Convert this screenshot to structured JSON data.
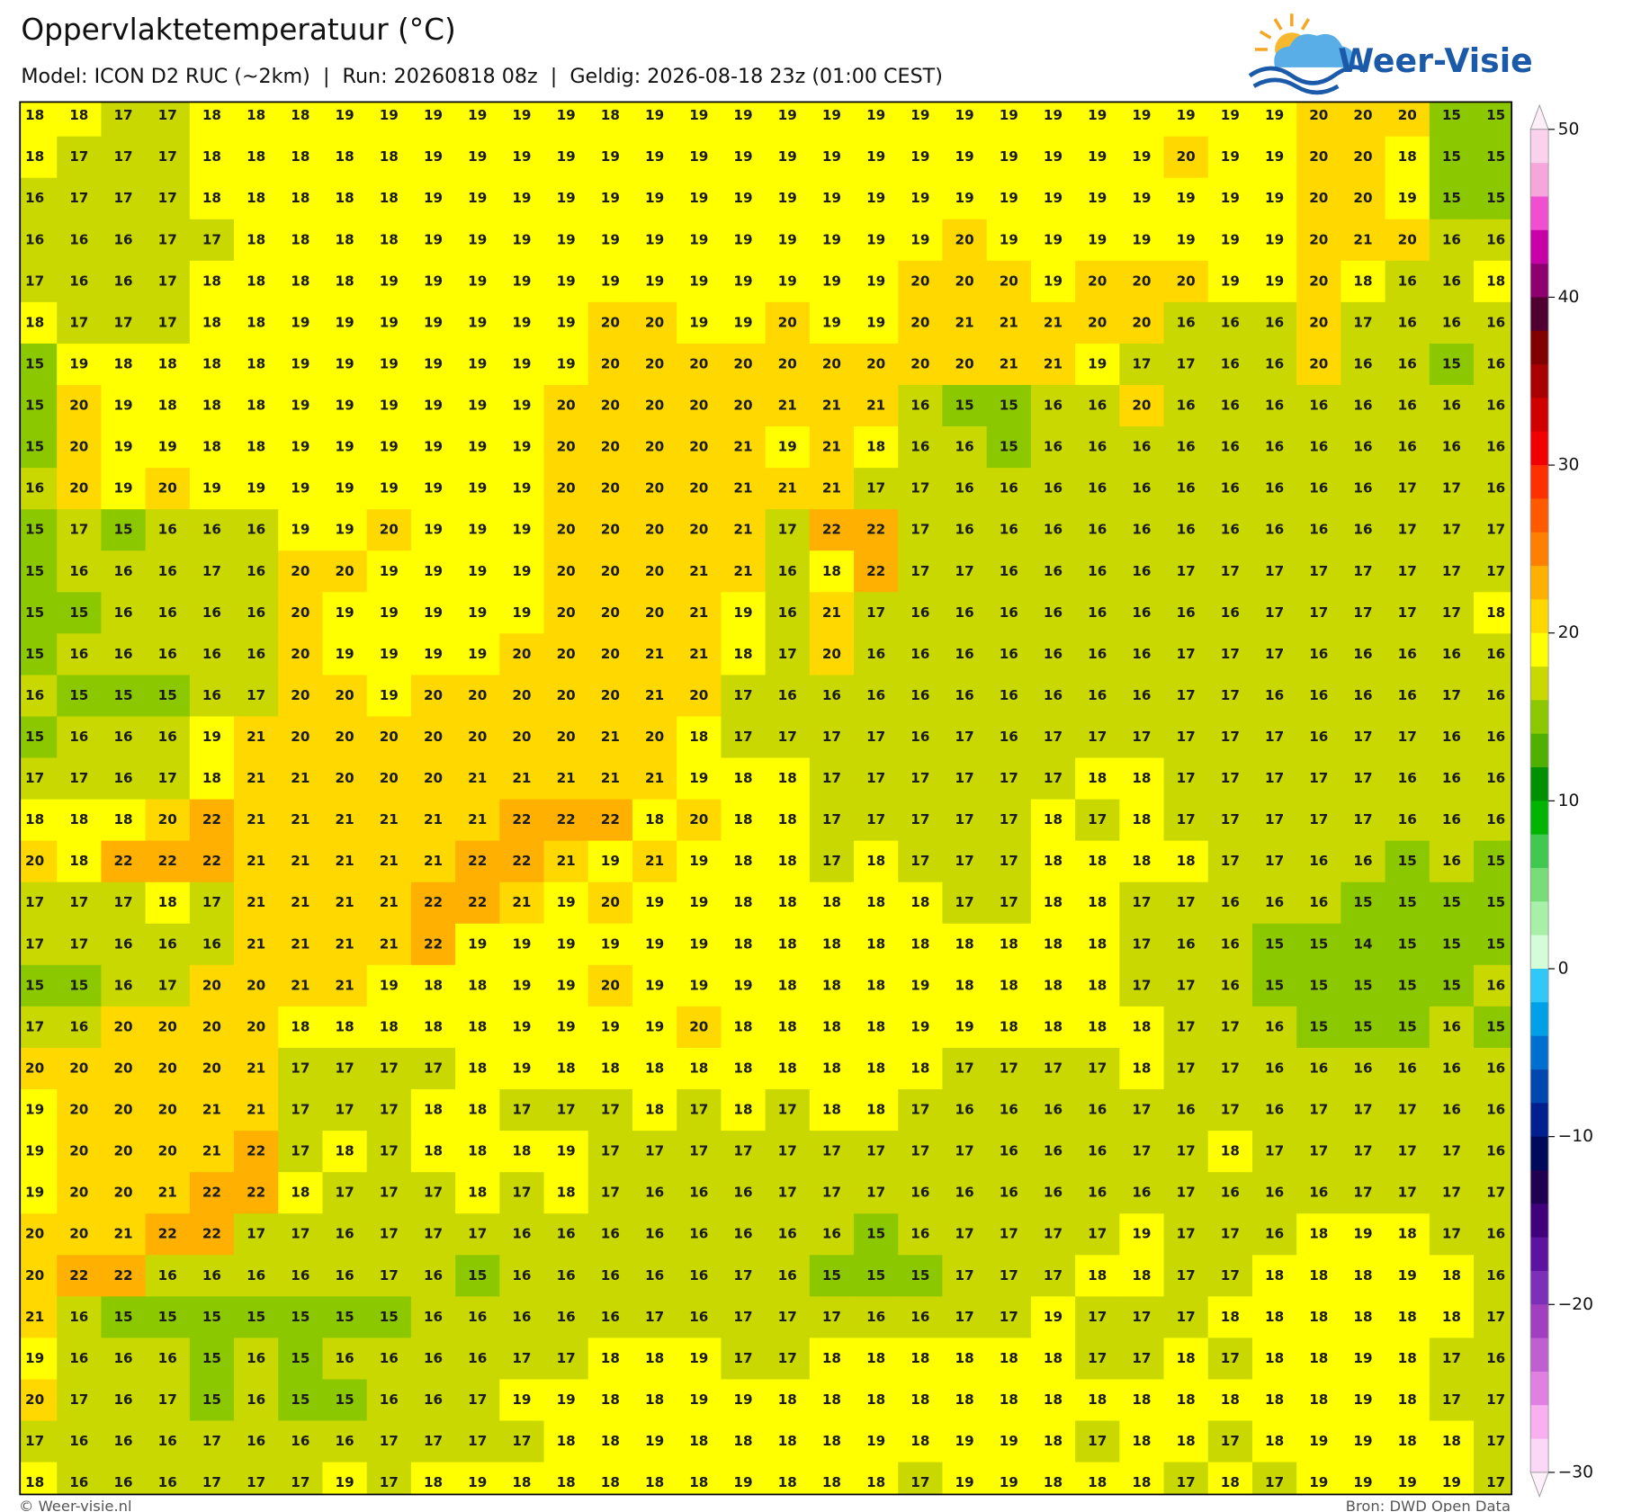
{
  "header": {
    "title": "Oppervlaktetemperatuur (°C)",
    "subtitle": "Model: ICON D2 RUC (~2km)  |  Run: 20260818 08z  |  Geldig: 2026-08-18 23z (01:00 CEST)"
  },
  "logo": {
    "text": "Weer-Visie"
  },
  "map": {
    "rows": [
      [
        18,
        18,
        17,
        17,
        18,
        18,
        18,
        19,
        19,
        19,
        19,
        19,
        19,
        18,
        19,
        19,
        19,
        19,
        19,
        19,
        19,
        19,
        19,
        19,
        19,
        19,
        19,
        19,
        19,
        20,
        20,
        20,
        15,
        15
      ],
      [
        18,
        17,
        17,
        17,
        18,
        18,
        18,
        18,
        18,
        19,
        19,
        19,
        19,
        19,
        19,
        19,
        19,
        19,
        19,
        19,
        19,
        19,
        19,
        19,
        19,
        19,
        20,
        19,
        19,
        20,
        20,
        18,
        15,
        15
      ],
      [
        16,
        17,
        17,
        17,
        18,
        18,
        18,
        18,
        18,
        19,
        19,
        19,
        19,
        19,
        19,
        19,
        19,
        19,
        19,
        19,
        19,
        19,
        19,
        19,
        19,
        19,
        19,
        19,
        19,
        20,
        20,
        19,
        15,
        15
      ],
      [
        16,
        16,
        16,
        17,
        17,
        18,
        18,
        18,
        18,
        19,
        19,
        19,
        19,
        19,
        19,
        19,
        19,
        19,
        19,
        19,
        19,
        20,
        19,
        19,
        19,
        19,
        19,
        19,
        19,
        20,
        21,
        20,
        16,
        16
      ],
      [
        17,
        16,
        16,
        17,
        18,
        18,
        18,
        18,
        19,
        19,
        19,
        19,
        19,
        19,
        19,
        19,
        19,
        19,
        19,
        19,
        20,
        20,
        20,
        19,
        20,
        20,
        20,
        19,
        19,
        20,
        18,
        16,
        16,
        18
      ],
      [
        18,
        17,
        17,
        17,
        18,
        18,
        19,
        19,
        19,
        19,
        19,
        19,
        19,
        20,
        20,
        19,
        19,
        20,
        19,
        19,
        20,
        21,
        21,
        21,
        20,
        20,
        16,
        16,
        16,
        20,
        17,
        16,
        16,
        16
      ],
      [
        15,
        19,
        18,
        18,
        18,
        18,
        19,
        19,
        19,
        19,
        19,
        19,
        19,
        20,
        20,
        20,
        20,
        20,
        20,
        20,
        20,
        20,
        21,
        21,
        19,
        17,
        17,
        16,
        16,
        20,
        16,
        16,
        15,
        16
      ],
      [
        15,
        20,
        19,
        18,
        18,
        18,
        19,
        19,
        19,
        19,
        19,
        19,
        20,
        20,
        20,
        20,
        20,
        21,
        21,
        21,
        16,
        15,
        15,
        16,
        16,
        20,
        16,
        16,
        16,
        16,
        16,
        16,
        16,
        16
      ],
      [
        15,
        20,
        19,
        19,
        18,
        18,
        19,
        19,
        19,
        19,
        19,
        19,
        20,
        20,
        20,
        20,
        21,
        19,
        21,
        18,
        16,
        16,
        15,
        16,
        16,
        16,
        16,
        16,
        16,
        16,
        16,
        16,
        16,
        16
      ],
      [
        16,
        20,
        19,
        20,
        19,
        19,
        19,
        19,
        19,
        19,
        19,
        19,
        20,
        20,
        20,
        20,
        21,
        21,
        21,
        17,
        17,
        16,
        16,
        16,
        16,
        16,
        16,
        16,
        16,
        16,
        16,
        17,
        17,
        16
      ],
      [
        15,
        17,
        15,
        16,
        16,
        16,
        19,
        19,
        20,
        19,
        19,
        19,
        20,
        20,
        20,
        20,
        21,
        17,
        22,
        22,
        17,
        16,
        16,
        16,
        16,
        16,
        16,
        16,
        16,
        16,
        16,
        17,
        17,
        17
      ],
      [
        15,
        16,
        16,
        16,
        17,
        16,
        20,
        20,
        19,
        19,
        19,
        19,
        20,
        20,
        20,
        21,
        21,
        16,
        18,
        22,
        17,
        17,
        16,
        16,
        16,
        16,
        17,
        17,
        17,
        17,
        17,
        17,
        17,
        17
      ],
      [
        15,
        15,
        16,
        16,
        16,
        16,
        20,
        19,
        19,
        19,
        19,
        19,
        20,
        20,
        20,
        21,
        19,
        16,
        21,
        17,
        16,
        16,
        16,
        16,
        16,
        16,
        16,
        16,
        17,
        17,
        17,
        17,
        17,
        18
      ],
      [
        15,
        16,
        16,
        16,
        16,
        16,
        20,
        19,
        19,
        19,
        19,
        20,
        20,
        20,
        21,
        21,
        18,
        17,
        20,
        16,
        16,
        16,
        16,
        16,
        16,
        16,
        17,
        17,
        17,
        16,
        16,
        16,
        16,
        16
      ],
      [
        16,
        15,
        15,
        15,
        16,
        17,
        20,
        20,
        19,
        20,
        20,
        20,
        20,
        20,
        21,
        20,
        17,
        16,
        16,
        16,
        16,
        16,
        16,
        16,
        16,
        16,
        17,
        17,
        16,
        16,
        16,
        16,
        17,
        16
      ],
      [
        15,
        16,
        16,
        16,
        19,
        21,
        20,
        20,
        20,
        20,
        20,
        20,
        20,
        21,
        20,
        18,
        17,
        17,
        17,
        17,
        16,
        17,
        16,
        17,
        17,
        17,
        17,
        17,
        17,
        16,
        17,
        17,
        16,
        16
      ],
      [
        17,
        17,
        16,
        17,
        18,
        21,
        21,
        20,
        20,
        20,
        21,
        21,
        21,
        21,
        21,
        19,
        18,
        18,
        17,
        17,
        17,
        17,
        17,
        17,
        18,
        18,
        17,
        17,
        17,
        17,
        17,
        16,
        16,
        16
      ],
      [
        18,
        18,
        18,
        20,
        22,
        21,
        21,
        21,
        21,
        21,
        21,
        22,
        22,
        22,
        18,
        20,
        18,
        18,
        17,
        17,
        17,
        17,
        17,
        18,
        17,
        18,
        17,
        17,
        17,
        17,
        17,
        16,
        16,
        16
      ],
      [
        20,
        18,
        22,
        22,
        22,
        21,
        21,
        21,
        21,
        21,
        22,
        22,
        21,
        19,
        21,
        19,
        18,
        18,
        17,
        18,
        17,
        17,
        17,
        18,
        18,
        18,
        18,
        17,
        17,
        16,
        16,
        15,
        16,
        15
      ],
      [
        17,
        17,
        17,
        18,
        17,
        21,
        21,
        21,
        21,
        22,
        22,
        21,
        19,
        20,
        19,
        19,
        18,
        18,
        18,
        18,
        18,
        17,
        17,
        18,
        18,
        17,
        17,
        16,
        16,
        16,
        15,
        15,
        15,
        15
      ],
      [
        17,
        17,
        16,
        16,
        16,
        21,
        21,
        21,
        21,
        22,
        19,
        19,
        19,
        19,
        19,
        19,
        18,
        18,
        18,
        18,
        18,
        18,
        18,
        18,
        18,
        17,
        16,
        16,
        15,
        15,
        14,
        15,
        15,
        15
      ],
      [
        15,
        15,
        16,
        17,
        20,
        20,
        21,
        21,
        19,
        18,
        18,
        19,
        19,
        20,
        19,
        19,
        19,
        18,
        18,
        18,
        19,
        18,
        18,
        18,
        18,
        17,
        17,
        16,
        15,
        15,
        15,
        15,
        15,
        16
      ],
      [
        17,
        16,
        20,
        20,
        20,
        20,
        18,
        18,
        18,
        18,
        18,
        19,
        19,
        19,
        19,
        20,
        18,
        18,
        18,
        18,
        19,
        19,
        18,
        18,
        18,
        18,
        17,
        17,
        16,
        15,
        15,
        15,
        16,
        15
      ],
      [
        20,
        20,
        20,
        20,
        20,
        21,
        17,
        17,
        17,
        17,
        18,
        19,
        18,
        18,
        18,
        18,
        18,
        18,
        18,
        18,
        18,
        17,
        17,
        17,
        17,
        18,
        17,
        17,
        16,
        16,
        16,
        16,
        16,
        16
      ],
      [
        19,
        20,
        20,
        20,
        21,
        21,
        17,
        17,
        17,
        18,
        18,
        17,
        17,
        17,
        18,
        17,
        18,
        17,
        18,
        18,
        17,
        16,
        16,
        16,
        16,
        17,
        16,
        17,
        16,
        17,
        17,
        17,
        16,
        16
      ],
      [
        19,
        20,
        20,
        20,
        21,
        22,
        17,
        18,
        17,
        18,
        18,
        18,
        19,
        17,
        17,
        17,
        17,
        17,
        17,
        17,
        17,
        17,
        16,
        16,
        16,
        17,
        17,
        18,
        17,
        17,
        17,
        17,
        17,
        16
      ],
      [
        19,
        20,
        20,
        21,
        22,
        22,
        18,
        17,
        17,
        17,
        18,
        17,
        18,
        17,
        16,
        16,
        16,
        17,
        17,
        17,
        16,
        16,
        16,
        16,
        16,
        16,
        17,
        16,
        16,
        16,
        17,
        17,
        17,
        17
      ],
      [
        20,
        20,
        21,
        22,
        22,
        17,
        17,
        16,
        17,
        17,
        17,
        16,
        16,
        16,
        16,
        16,
        16,
        16,
        16,
        15,
        16,
        17,
        17,
        17,
        17,
        19,
        17,
        17,
        16,
        18,
        19,
        18,
        17,
        16
      ],
      [
        20,
        22,
        22,
        16,
        16,
        16,
        16,
        16,
        17,
        16,
        15,
        16,
        16,
        16,
        16,
        16,
        17,
        16,
        15,
        15,
        15,
        17,
        17,
        17,
        18,
        18,
        17,
        17,
        18,
        18,
        18,
        19,
        18,
        16
      ],
      [
        21,
        16,
        15,
        15,
        15,
        15,
        15,
        15,
        15,
        16,
        16,
        16,
        16,
        16,
        17,
        16,
        17,
        17,
        17,
        16,
        16,
        17,
        17,
        19,
        17,
        17,
        17,
        18,
        18,
        18,
        18,
        18,
        18,
        17
      ],
      [
        19,
        16,
        16,
        16,
        15,
        16,
        15,
        16,
        16,
        16,
        16,
        17,
        17,
        18,
        18,
        19,
        17,
        17,
        18,
        18,
        18,
        18,
        18,
        18,
        17,
        17,
        18,
        17,
        18,
        18,
        19,
        18,
        17,
        16
      ],
      [
        20,
        17,
        16,
        17,
        15,
        16,
        15,
        15,
        16,
        16,
        17,
        19,
        19,
        18,
        18,
        19,
        19,
        18,
        18,
        18,
        18,
        18,
        18,
        18,
        18,
        18,
        18,
        18,
        18,
        18,
        19,
        18,
        17,
        17
      ],
      [
        17,
        16,
        16,
        16,
        17,
        16,
        16,
        16,
        17,
        17,
        17,
        17,
        18,
        18,
        19,
        18,
        18,
        18,
        18,
        19,
        18,
        19,
        19,
        18,
        17,
        18,
        18,
        17,
        18,
        19,
        19,
        18,
        18,
        17
      ],
      [
        18,
        16,
        16,
        16,
        17,
        17,
        17,
        19,
        17,
        18,
        19,
        18,
        18,
        18,
        18,
        18,
        19,
        18,
        18,
        18,
        17,
        19,
        19,
        18,
        18,
        18,
        17,
        18,
        17,
        19,
        19,
        19,
        19,
        17
      ]
    ]
  },
  "colorbar": {
    "lim": [
      -30,
      50
    ],
    "ticks": [
      50,
      40,
      30,
      20,
      10,
      {
        "value": 0,
        "label": "0"
      },
      {
        "value": -10,
        "label": "−10"
      },
      {
        "value": -20,
        "label": "−20"
      },
      {
        "value": -30,
        "label": "−30"
      }
    ],
    "colors": [
      "#fbd2ee",
      "#f7a6dc",
      "#f050d0",
      "#c800a8",
      "#8c0070",
      "#500030",
      "#800000",
      "#a80000",
      "#d00000",
      "#f00000",
      "#ff3000",
      "#ff5a00",
      "#ff8000",
      "#ffb000",
      "#ffd800",
      "#ffff00",
      "#c8d800",
      "#8cc800",
      "#50b000",
      "#009000",
      "#00b400",
      "#40c850",
      "#78dc78",
      "#a8f0a8",
      "#d4fcd8",
      "#30c8f8",
      "#00a0e8",
      "#0070d0",
      "#0048b0",
      "#002090",
      "#000a5a",
      "#200050",
      "#40007c",
      "#5c14a0",
      "#7c30b8",
      "#a040c0",
      "#c060d0",
      "#e080e0",
      "#f8b0f0",
      "#fcd8f8"
    ]
  },
  "footer": {
    "left": "© Weer-visie.nl",
    "right": "Bron: DWD Open Data"
  }
}
